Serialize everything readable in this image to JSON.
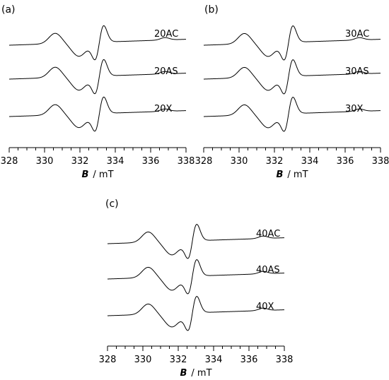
{
  "chart_data": [
    {
      "type": "line",
      "panel_label": "(a)",
      "xlabel_symbol": "B",
      "xlabel_unit": "/  mT",
      "xlim": [
        328,
        338
      ],
      "xticks": [
        328,
        330,
        332,
        334,
        336,
        338
      ],
      "minor_tick_step": 0.5,
      "series": [
        {
          "name": "20AC",
          "center": 333.1,
          "low_peak": 330.6
        },
        {
          "name": "20AS",
          "center": 333.1,
          "low_peak": 330.6
        },
        {
          "name": "20X",
          "center": 333.1,
          "low_peak": 330.6
        }
      ]
    },
    {
      "type": "line",
      "panel_label": "(b)",
      "xlabel_symbol": "B",
      "xlabel_unit": "/  mT",
      "xlim": [
        328,
        338
      ],
      "xticks": [
        328,
        330,
        332,
        334,
        336,
        338
      ],
      "minor_tick_step": 0.5,
      "series": [
        {
          "name": "30AC",
          "center": 332.8,
          "low_peak": 330.3
        },
        {
          "name": "30AS",
          "center": 332.8,
          "low_peak": 330.3
        },
        {
          "name": "30X",
          "center": 332.8,
          "low_peak": 330.3
        }
      ]
    },
    {
      "type": "line",
      "panel_label": "(c)",
      "xlabel_symbol": "B",
      "xlabel_unit": "/  mT",
      "xlim": [
        328,
        338
      ],
      "xticks": [
        328,
        330,
        332,
        334,
        336,
        338
      ],
      "minor_tick_step": 0.5,
      "series": [
        {
          "name": "40AC",
          "center": 332.8,
          "low_peak": 330.3
        },
        {
          "name": "40AS",
          "center": 332.8,
          "low_peak": 330.3
        },
        {
          "name": "40X",
          "center": 332.8,
          "low_peak": 330.3
        }
      ]
    }
  ]
}
